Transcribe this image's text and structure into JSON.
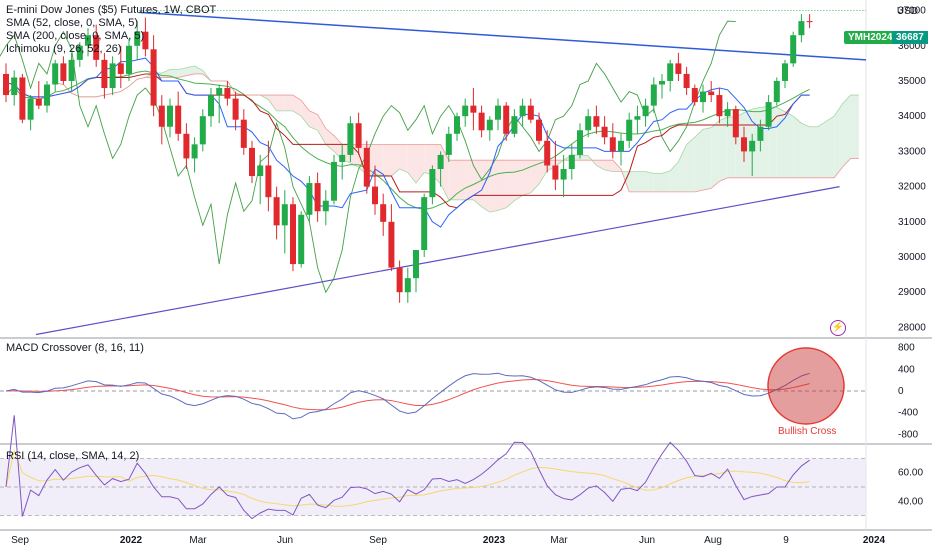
{
  "header": {
    "title": "E-mini Dow Jones ($5) Futures, 1W, CBOT",
    "indicators": [
      "SMA (52, close, 0, SMA, 5)",
      "SMA (200, close, 0, SMA, 5)",
      "Ichimoku (9, 26, 52, 26)"
    ],
    "currency": "USD",
    "symbol_tag": "YMH2024",
    "last_price": "36687"
  },
  "colors": {
    "up": "#22ab49",
    "down": "#e0282d",
    "sma52": "#4caf50",
    "sma200": "#5b4ec9",
    "trendline": "#2f5bd9",
    "tenkan": "#2962ff",
    "kijun": "#b71c1c",
    "chikou": "#43a047",
    "cloud_bull": "#e3f2e6",
    "cloud_bear": "#fbe5e5",
    "macd": "#5c6bc0",
    "signal": "#ef5350",
    "rsi": "#7e57c2",
    "rsi_ma": "#f5d76e",
    "annotation": "#e53935"
  },
  "x_axis": {
    "labels": [
      "Sep",
      "2022",
      "Mar",
      "Jun",
      "Sep",
      "2023",
      "Mar",
      "Jun",
      "Aug",
      "9",
      "2024"
    ]
  },
  "chart_data": [
    {
      "type": "candlestick",
      "title": "E-mini Dow Jones ($5) Futures, 1W, CBOT",
      "y_ticks": [
        28000,
        29000,
        30000,
        31000,
        32000,
        33000,
        34000,
        35000,
        36000,
        37000
      ],
      "ylim": [
        27700,
        37300
      ],
      "candles": [
        [
          35200,
          35500,
          34400,
          34600
        ],
        [
          34600,
          35300,
          34300,
          35100
        ],
        [
          35100,
          35200,
          33800,
          33900
        ],
        [
          33900,
          34600,
          33600,
          34500
        ],
        [
          34500,
          35000,
          34200,
          34300
        ],
        [
          34300,
          35000,
          34100,
          34900
        ],
        [
          34900,
          35600,
          34700,
          35500
        ],
        [
          35500,
          35700,
          34900,
          35000
        ],
        [
          35000,
          35800,
          34700,
          35600
        ],
        [
          35600,
          36100,
          35400,
          36000
        ],
        [
          36000,
          36500,
          35700,
          36300
        ],
        [
          36300,
          36600,
          35400,
          35600
        ],
        [
          35600,
          35800,
          34500,
          34800
        ],
        [
          34800,
          35700,
          34600,
          35500
        ],
        [
          35500,
          36000,
          34800,
          35200
        ],
        [
          35200,
          36200,
          35000,
          36000
        ],
        [
          36000,
          36700,
          35600,
          36400
        ],
        [
          36400,
          36800,
          35700,
          35900
        ],
        [
          35900,
          36300,
          34000,
          34300
        ],
        [
          34300,
          34600,
          33200,
          33700
        ],
        [
          33700,
          34500,
          33400,
          34300
        ],
        [
          34300,
          34700,
          33300,
          33500
        ],
        [
          33500,
          33800,
          32500,
          32800
        ],
        [
          32800,
          33400,
          32400,
          33200
        ],
        [
          33200,
          34200,
          33000,
          34000
        ],
        [
          34000,
          34800,
          33700,
          34600
        ],
        [
          34600,
          34900,
          33800,
          34800
        ],
        [
          34800,
          35000,
          34300,
          34500
        ],
        [
          34500,
          34700,
          33600,
          33900
        ],
        [
          33900,
          34200,
          32900,
          33100
        ],
        [
          33100,
          33300,
          32100,
          32300
        ],
        [
          32300,
          32900,
          31500,
          32600
        ],
        [
          32600,
          33300,
          31300,
          31700
        ],
        [
          31700,
          32000,
          30500,
          30900
        ],
        [
          30900,
          31900,
          30100,
          31500
        ],
        [
          31500,
          31700,
          29600,
          29800
        ],
        [
          29800,
          31300,
          29700,
          31200
        ],
        [
          31200,
          32300,
          31000,
          32100
        ],
        [
          32100,
          32400,
          31000,
          31300
        ],
        [
          31300,
          31900,
          30900,
          31600
        ],
        [
          31600,
          32900,
          31500,
          32700
        ],
        [
          32700,
          33200,
          32200,
          32900
        ],
        [
          32900,
          34000,
          32700,
          33800
        ],
        [
          33800,
          34100,
          32900,
          33100
        ],
        [
          33100,
          33300,
          31800,
          32000
        ],
        [
          32000,
          32600,
          31200,
          31500
        ],
        [
          31500,
          31800,
          30600,
          31000
        ],
        [
          31000,
          31500,
          29600,
          29700
        ],
        [
          29700,
          29900,
          28700,
          29000
        ],
        [
          29000,
          29700,
          28700,
          29400
        ],
        [
          29400,
          30200,
          29000,
          30200
        ],
        [
          30200,
          31800,
          30000,
          31700
        ],
        [
          31700,
          32600,
          31500,
          32500
        ],
        [
          32500,
          33000,
          32000,
          32900
        ],
        [
          32900,
          33700,
          32700,
          33500
        ],
        [
          33500,
          34100,
          33300,
          34000
        ],
        [
          34000,
          34500,
          33700,
          34300
        ],
        [
          34300,
          34800,
          33600,
          34100
        ],
        [
          34100,
          34300,
          33400,
          33600
        ],
        [
          33600,
          34000,
          33300,
          33900
        ],
        [
          33900,
          34500,
          33600,
          34300
        ],
        [
          34300,
          34400,
          33300,
          33500
        ],
        [
          33500,
          34200,
          33400,
          34000
        ],
        [
          34000,
          34500,
          33700,
          34300
        ],
        [
          34300,
          34500,
          33800,
          33900
        ],
        [
          33900,
          34100,
          33200,
          33300
        ],
        [
          33300,
          33600,
          32400,
          32600
        ],
        [
          32600,
          33300,
          31900,
          32200
        ],
        [
          32200,
          32900,
          31700,
          32500
        ],
        [
          32500,
          33200,
          32200,
          32900
        ],
        [
          32900,
          33800,
          32800,
          33600
        ],
        [
          33600,
          34200,
          33400,
          34000
        ],
        [
          34000,
          34300,
          33500,
          33700
        ],
        [
          33700,
          34000,
          33200,
          33400
        ],
        [
          33400,
          33800,
          32800,
          33000
        ],
        [
          33000,
          33500,
          32600,
          33300
        ],
        [
          33300,
          34100,
          33100,
          33900
        ],
        [
          33900,
          34300,
          33500,
          34000
        ],
        [
          34000,
          34500,
          33700,
          34300
        ],
        [
          34300,
          35100,
          34100,
          34900
        ],
        [
          34900,
          35200,
          34500,
          35000
        ],
        [
          35000,
          35600,
          34700,
          35500
        ],
        [
          35500,
          35800,
          35000,
          35200
        ],
        [
          35200,
          35400,
          34600,
          34800
        ],
        [
          34800,
          34900,
          34300,
          34400
        ],
        [
          34400,
          34900,
          34100,
          34700
        ],
        [
          34700,
          35000,
          34400,
          34600
        ],
        [
          34600,
          34800,
          33800,
          34000
        ],
        [
          34000,
          34400,
          33700,
          34200
        ],
        [
          34200,
          34300,
          33200,
          33400
        ],
        [
          33400,
          33700,
          32700,
          33000
        ],
        [
          33000,
          33500,
          32300,
          33300
        ],
        [
          33300,
          33900,
          33000,
          33700
        ],
        [
          33700,
          34600,
          33600,
          34400
        ],
        [
          34400,
          35100,
          34300,
          35000
        ],
        [
          35000,
          35600,
          34800,
          35500
        ],
        [
          35500,
          36400,
          35400,
          36300
        ],
        [
          36300,
          36900,
          36100,
          36700
        ],
        [
          36700,
          36900,
          36500,
          36687
        ]
      ],
      "sma200_endpoints": [
        [
          0,
          27800
        ],
        [
          98,
          32000
        ]
      ],
      "trendline_endpoints": [
        [
          37,
          36950
        ],
        [
          118,
          35600
        ]
      ],
      "last_price": 36687
    },
    {
      "type": "line",
      "title": "MACD Crossover (8, 16, 11)",
      "y_ticks": [
        800,
        400,
        0,
        -400,
        -800
      ],
      "ylim": [
        -980,
        980
      ],
      "zero_line": true,
      "annotation": "Bullish Cross"
    },
    {
      "type": "line",
      "title": "RSI (14, close, SMA, 14, 2)",
      "y_ticks": [
        60,
        40
      ],
      "ylim": [
        20,
        80
      ],
      "bands": [
        70,
        50,
        30
      ]
    }
  ]
}
